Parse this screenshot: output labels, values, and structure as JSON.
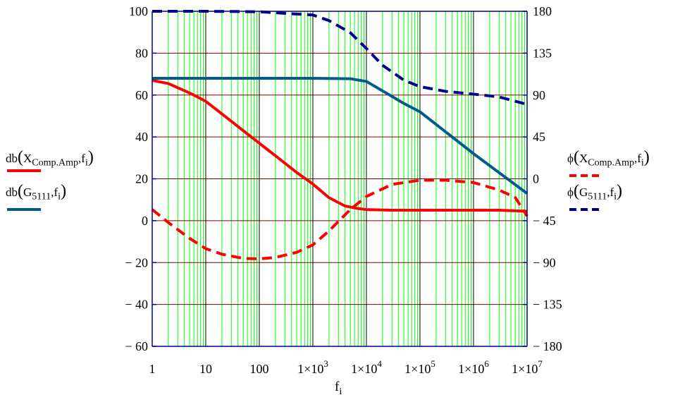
{
  "chart_data": {
    "type": "line",
    "x_scale": "log",
    "xlim": [
      1,
      10000000
    ],
    "ylim_left": [
      -60,
      100
    ],
    "ylim_right": [
      -180,
      180
    ],
    "xlabel_base": "f",
    "xlabel_sub": "i",
    "x_ticks": [
      {
        "value": 1,
        "mant": "1",
        "exp": ""
      },
      {
        "value": 10,
        "mant": "10",
        "exp": ""
      },
      {
        "value": 100,
        "mant": "100",
        "exp": ""
      },
      {
        "value": 1000,
        "mant": "1×10",
        "exp": "3"
      },
      {
        "value": 10000,
        "mant": "1×10",
        "exp": "4"
      },
      {
        "value": 100000,
        "mant": "1×10",
        "exp": "5"
      },
      {
        "value": 1000000,
        "mant": "1×10",
        "exp": "6"
      },
      {
        "value": 10000000,
        "mant": "1×10",
        "exp": "7"
      }
    ],
    "y_ticks_left": [
      100,
      80,
      60,
      40,
      20,
      0,
      -20,
      -40,
      -60
    ],
    "y_ticks_left_labels": [
      "100",
      "80",
      "60",
      "40",
      "20",
      "0",
      "− 20",
      "− 40",
      "− 60"
    ],
    "y_ticks_right": [
      180,
      135,
      90,
      45,
      0,
      -45,
      -90,
      -135,
      -180
    ],
    "y_ticks_right_labels": [
      "180",
      "135",
      "90",
      "45",
      "0",
      "− 45",
      "− 90",
      "− 135",
      "− 180"
    ],
    "grid": true,
    "colors": {
      "red": "#ff0000",
      "blue_solid": "#005a8c",
      "blue_dash": "#000090",
      "grid_green": "#00ff00",
      "grid_major": "#000000",
      "grid_h": "#800000"
    },
    "series": [
      {
        "legend_prefix": "db",
        "legend_main": "X",
        "legend_main_sub": "Comp.Amp",
        "legend_arg": "f",
        "legend_arg_sub": "i",
        "axis": "left",
        "style": "solid",
        "color": "#ff0000",
        "x": [
          1,
          2,
          3,
          5,
          10,
          20,
          50,
          100,
          200,
          500,
          1000,
          2000,
          4000,
          7000,
          10000,
          30000,
          100000,
          1000000,
          3000000,
          10000000
        ],
        "y": [
          67,
          65.5,
          63.5,
          61,
          57,
          51,
          43,
          37,
          31,
          23,
          17.5,
          11,
          7,
          5.8,
          5.3,
          5,
          5,
          5,
          5,
          4.5
        ]
      },
      {
        "legend_prefix": "db",
        "legend_main": "G",
        "legend_main_sub": "5111",
        "legend_arg": "f",
        "legend_arg_sub": "i",
        "axis": "left",
        "style": "solid",
        "color": "#005a8c",
        "x": [
          1,
          10,
          100,
          1000,
          5000,
          10000,
          20000,
          50000,
          100000,
          1000000,
          10000000
        ],
        "y": [
          68,
          68,
          68,
          68,
          67.8,
          66.5,
          62,
          56,
          52,
          32,
          13
        ]
      },
      {
        "legend_prefix": "ϕ",
        "legend_main": "X",
        "legend_main_sub": "Comp.Amp",
        "legend_arg": "f",
        "legend_arg_sub": "i",
        "axis": "right",
        "style": "dashed",
        "color": "#ff0000",
        "x": [
          1,
          2,
          5,
          10,
          20,
          50,
          100,
          200,
          500,
          1000,
          2000,
          5000,
          10000,
          30000,
          100000,
          300000,
          1000000,
          3000000,
          6000000,
          10000000
        ],
        "y": [
          -33,
          -47,
          -64,
          -75,
          -81,
          -85.5,
          -86,
          -84.5,
          -79,
          -71,
          -56,
          -33,
          -19,
          -6,
          -1.5,
          -1.5,
          -4,
          -12,
          -20,
          -40
        ]
      },
      {
        "legend_prefix": "ϕ",
        "legend_main": "G",
        "legend_main_sub": "5111",
        "legend_arg": "f",
        "legend_arg_sub": "i",
        "axis": "right",
        "style": "dashed",
        "color": "#000090",
        "x": [
          1,
          10,
          100,
          1000,
          2000,
          5000,
          10000,
          20000,
          50000,
          100000,
          300000,
          1000000,
          3000000,
          10000000
        ],
        "y": [
          180,
          180,
          179.5,
          176,
          170,
          157,
          140,
          122,
          106,
          99,
          94,
          91,
          88,
          80
        ]
      }
    ]
  }
}
